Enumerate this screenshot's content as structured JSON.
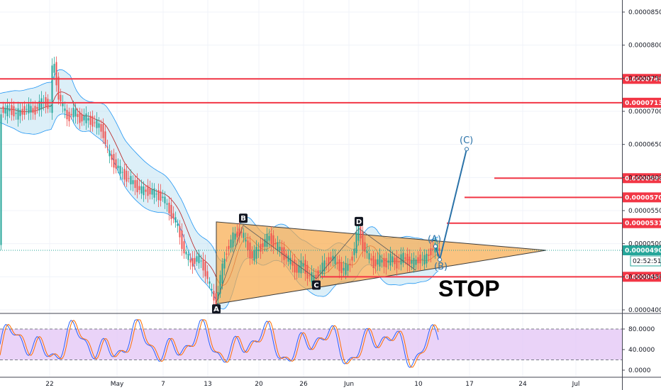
{
  "chart_data": {
    "type": "candlestick",
    "price_axis": {
      "range": [
        4e-05,
        8.65e-05
      ],
      "ticks": [
        "0.0000850",
        "0.0000800",
        "0.0000750",
        "0.0000700",
        "0.0000650",
        "0.0000600",
        "0.0000550",
        "0.0000500",
        "0.0000450",
        "0.0000400"
      ]
    },
    "date_axis": {
      "ticks": [
        "22",
        "May",
        "7",
        "13",
        "20",
        "26",
        "Jun",
        "10",
        "17",
        "24",
        "Jul"
      ]
    },
    "horizontal_levels": [
      "0.0000749",
      "0.0000713",
      "0.0000599",
      "0.0000570",
      "0.0000531",
      "0.0000450"
    ],
    "current_price": "0.0000490",
    "countdown": "02:52:51",
    "price_path": [
      [
        0,
        7.05e-05
      ],
      [
        8,
        7e-05
      ],
      [
        16,
        7.03e-05
      ],
      [
        24,
        6.95e-05
      ],
      [
        32,
        7e-05
      ],
      [
        40,
        7.05e-05
      ],
      [
        48,
        7e-05
      ],
      [
        56,
        7.1e-05
      ],
      [
        64,
        7.15e-05
      ],
      [
        72,
        7.05e-05
      ],
      [
        74,
        7.6e-05
      ],
      [
        78,
        7.7e-05
      ],
      [
        82,
        7.3e-05
      ],
      [
        88,
        7.1e-05
      ],
      [
        96,
        6.9e-05
      ],
      [
        104,
        7e-05
      ],
      [
        112,
        6.9e-05
      ],
      [
        120,
        6.9e-05
      ],
      [
        130,
        6.85e-05
      ],
      [
        138,
        6.8e-05
      ],
      [
        146,
        6.7e-05
      ],
      [
        152,
        6.4e-05
      ],
      [
        160,
        6.25e-05
      ],
      [
        170,
        6.1e-05
      ],
      [
        180,
        6e-05
      ],
      [
        190,
        5.9e-05
      ],
      [
        200,
        5.8e-05
      ],
      [
        210,
        5.8e-05
      ],
      [
        220,
        5.75e-05
      ],
      [
        230,
        5.7e-05
      ],
      [
        240,
        5.5e-05
      ],
      [
        250,
        5.3e-05
      ],
      [
        260,
        4.9e-05
      ],
      [
        270,
        4.7e-05
      ],
      [
        280,
        4.8e-05
      ],
      [
        290,
        4.6e-05
      ],
      [
        298,
        4.3e-05
      ],
      [
        305,
        4.1e-05
      ],
      [
        312,
        4.5e-05
      ],
      [
        320,
        4.9e-05
      ],
      [
        330,
        5.1e-05
      ],
      [
        340,
        5.2e-05
      ],
      [
        348,
        5e-05
      ],
      [
        356,
        4.8e-05
      ],
      [
        364,
        4.9e-05
      ],
      [
        372,
        5e-05
      ],
      [
        380,
        5.1e-05
      ],
      [
        388,
        5e-05
      ],
      [
        396,
        4.9e-05
      ],
      [
        404,
        4.8e-05
      ],
      [
        412,
        4.7e-05
      ],
      [
        420,
        4.6e-05
      ],
      [
        428,
        4.7e-05
      ],
      [
        436,
        4.5e-05
      ],
      [
        444,
        4.48e-05
      ],
      [
        452,
        4.6e-05
      ],
      [
        460,
        4.7e-05
      ],
      [
        468,
        4.8e-05
      ],
      [
        476,
        4.7e-05
      ],
      [
        484,
        4.6e-05
      ],
      [
        492,
        4.65e-05
      ],
      [
        500,
        4.9e-05
      ],
      [
        506,
        5.25e-05
      ],
      [
        512,
        5e-05
      ],
      [
        520,
        4.8e-05
      ],
      [
        528,
        4.7e-05
      ],
      [
        536,
        4.75e-05
      ],
      [
        544,
        4.7e-05
      ],
      [
        552,
        4.78e-05
      ],
      [
        560,
        4.7e-05
      ],
      [
        568,
        4.8e-05
      ],
      [
        576,
        4.75e-05
      ],
      [
        584,
        4.7e-05
      ],
      [
        592,
        4.78e-05
      ],
      [
        600,
        4.75e-05
      ],
      [
        608,
        4.9e-05
      ],
      [
        614,
        4.95e-05
      ],
      [
        620,
        4.9e-05
      ]
    ],
    "triangle": [
      [
        305,
        5.33e-05
      ],
      [
        305,
        4.09e-05
      ],
      [
        770,
        4.9e-05
      ]
    ],
    "wave_labels": [
      "A",
      "B",
      "C",
      "D",
      "(A)",
      "(B)",
      "(C)"
    ],
    "annotation": "STOP",
    "oscillator": {
      "levels": [
        "80.0000",
        "40.0000",
        "0.0000"
      ],
      "overbought": 80,
      "oversold": 20
    }
  },
  "colors": {
    "level_line": "#f23645",
    "triangle_fill": "#f8a94a",
    "band_fill": "#b2dcef",
    "up": "#26a69a",
    "down": "#ef5350",
    "wave_arrow": "#2a72a8",
    "osc_fill": "#e3c4f5",
    "current_price": "#26a69a"
  }
}
